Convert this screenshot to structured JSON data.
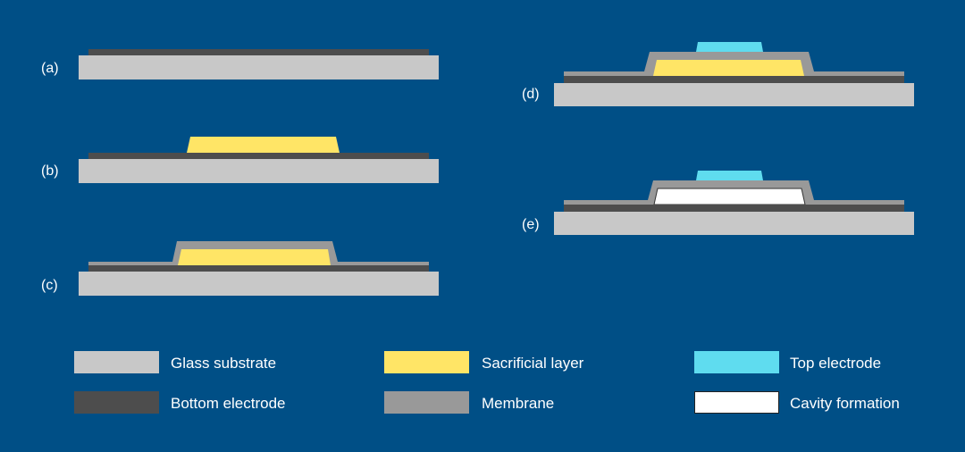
{
  "colors": {
    "background": "#004f86",
    "glass_substrate": "#c8c8c8",
    "bottom_electrode": "#4d4d4d",
    "membrane": "#999999",
    "sacrificial_layer": "#ffe566",
    "top_electrode": "#5fdcef",
    "cavity": "#ffffff"
  },
  "steps": [
    {
      "label": "(a)"
    },
    {
      "label": "(b)"
    },
    {
      "label": "(c)"
    },
    {
      "label": "(d)"
    },
    {
      "label": "(e)"
    }
  ],
  "legend": [
    {
      "label": "Glass substrate"
    },
    {
      "label": "Bottom electrode"
    },
    {
      "label": "Sacrificial layer"
    },
    {
      "label": "Membrane"
    },
    {
      "label": "Top electrode"
    },
    {
      "label": "Cavity formation"
    }
  ]
}
